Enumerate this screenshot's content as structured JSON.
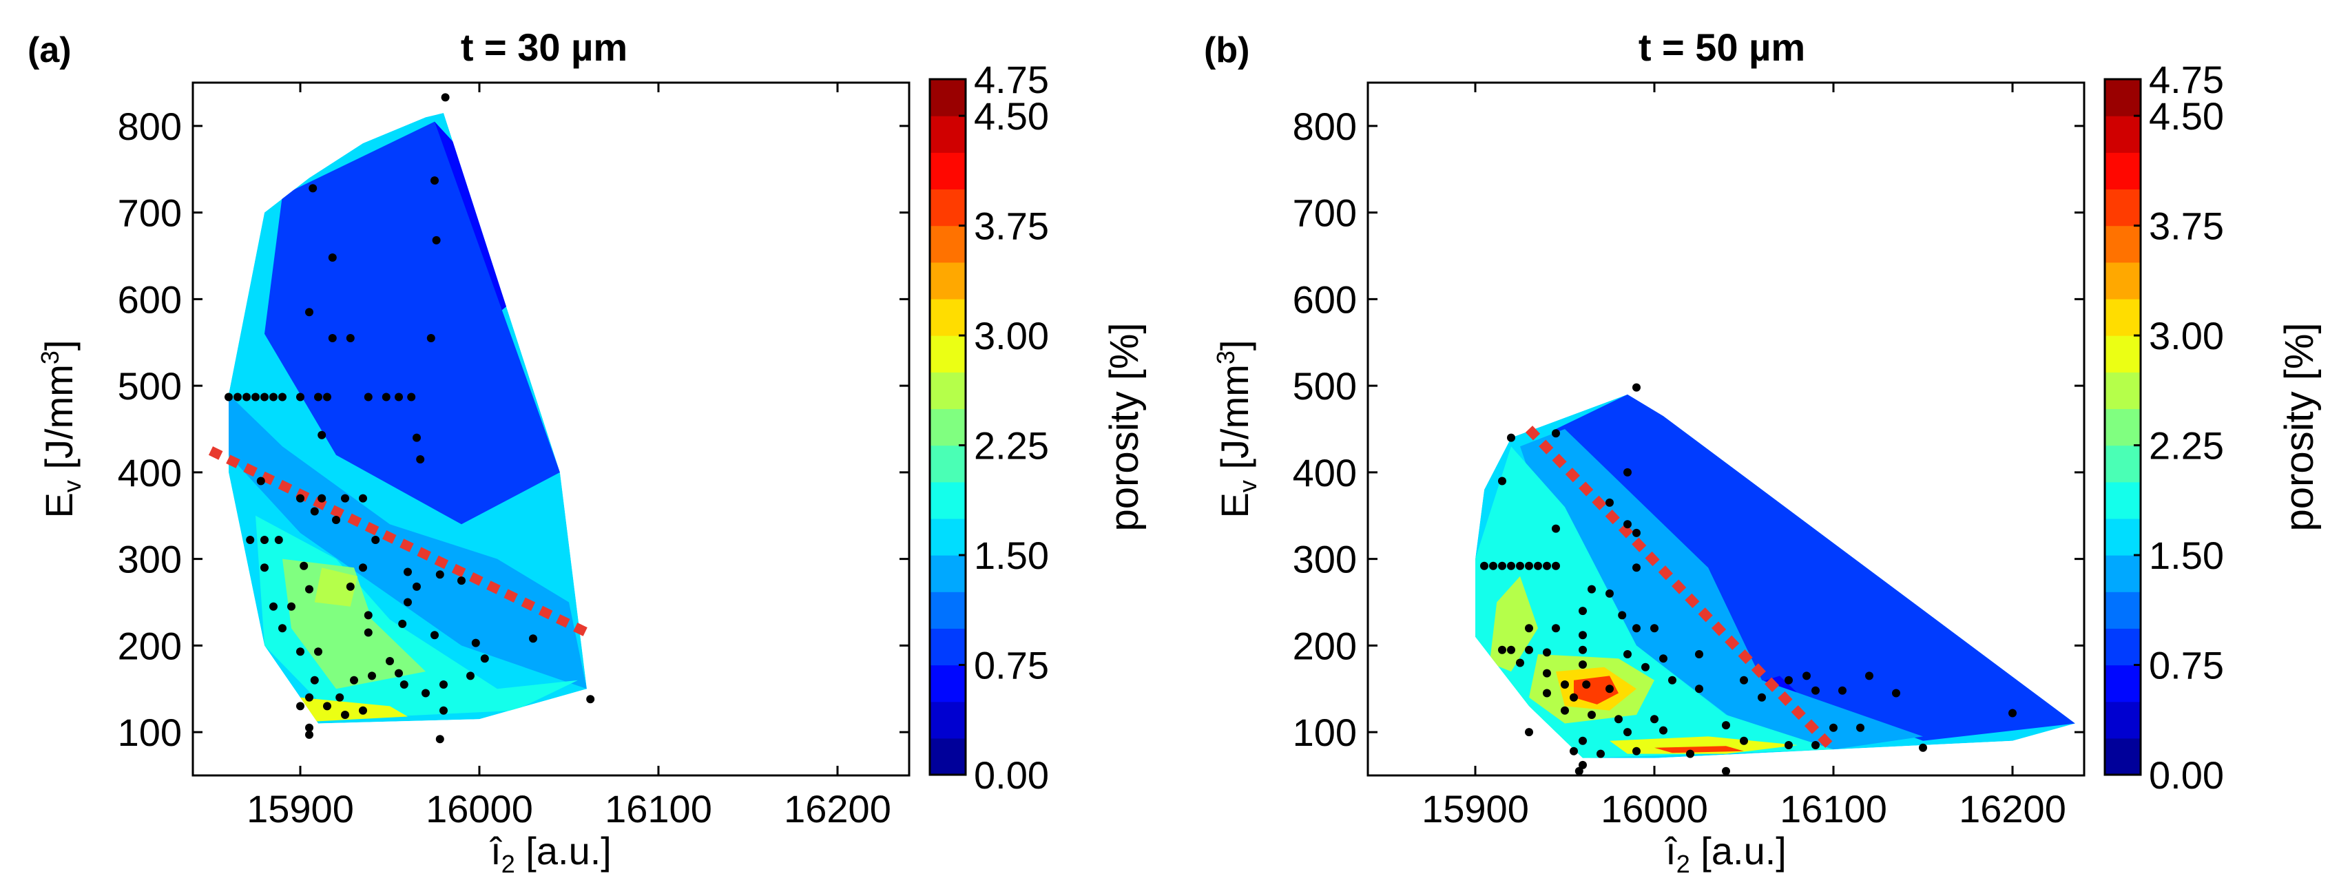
{
  "chart_data": [
    {
      "type": "heatmap",
      "panel_label": "(a)",
      "title": "t = 30 µm",
      "xlabel_main": "î",
      "xlabel_sub": "2",
      "xlabel_rest": " [a.u.]",
      "ylabel_main": "E",
      "ylabel_sub": "v",
      "ylabel_rest": " [J/mm",
      "ylabel_sup": "3",
      "ylabel_close": "]",
      "xlim": [
        15840,
        16240
      ],
      "ylim": [
        50,
        850
      ],
      "xticks": [
        15900,
        16000,
        16100,
        16200
      ],
      "yticks": [
        100,
        200,
        300,
        400,
        500,
        600,
        700,
        800
      ],
      "region": [
        [
          15860,
          490
        ],
        [
          15880,
          700
        ],
        [
          15905,
          740
        ],
        [
          15935,
          780
        ],
        [
          15970,
          810
        ],
        [
          15980,
          815
        ],
        [
          16045,
          400
        ],
        [
          16060,
          150
        ],
        [
          16000,
          115
        ],
        [
          15910,
          110
        ],
        [
          15880,
          200
        ],
        [
          15860,
          400
        ]
      ],
      "zones": [
        {
          "value": 0.5,
          "points": [
            [
              15930,
              720
            ],
            [
              15975,
              805
            ],
            [
              15995,
              760
            ],
            [
              16020,
              600
            ],
            [
              15985,
              540
            ],
            [
              15950,
              600
            ]
          ]
        },
        {
          "value": 0.8,
          "points": [
            [
              15890,
              720
            ],
            [
              15975,
              805
            ],
            [
              16045,
              400
            ],
            [
              15990,
              340
            ],
            [
              15920,
              420
            ],
            [
              15880,
              560
            ]
          ]
        },
        {
          "value": 1.3,
          "points": [
            [
              15860,
              490
            ],
            [
              15890,
              430
            ],
            [
              15950,
              340
            ],
            [
              16010,
              300
            ],
            [
              16050,
              250
            ],
            [
              16060,
              150
            ],
            [
              15990,
              200
            ],
            [
              15900,
              330
            ],
            [
              15860,
              420
            ]
          ]
        },
        {
          "value": 1.9,
          "points": [
            [
              15875,
              350
            ],
            [
              15920,
              300
            ],
            [
              15950,
              230
            ],
            [
              16010,
              150
            ],
            [
              16055,
              160
            ],
            [
              16020,
              125
            ],
            [
              15920,
              115
            ],
            [
              15880,
              200
            ]
          ]
        },
        {
          "value": 2.4,
          "points": [
            [
              15890,
              300
            ],
            [
              15930,
              290
            ],
            [
              15940,
              230
            ],
            [
              15970,
              170
            ],
            [
              15920,
              150
            ],
            [
              15895,
              220
            ]
          ]
        },
        {
          "value": 2.9,
          "points": [
            [
              15900,
              140
            ],
            [
              15950,
              130
            ],
            [
              15960,
              118
            ],
            [
              15905,
              112
            ]
          ]
        },
        {
          "value": 2.5,
          "points": [
            [
              15912,
              290
            ],
            [
              15932,
              280
            ],
            [
              15928,
              245
            ],
            [
              15908,
              250
            ]
          ]
        }
      ],
      "points": [
        [
          15981,
          833
        ],
        [
          15907,
          728
        ],
        [
          15975,
          737
        ],
        [
          15918,
          648
        ],
        [
          15976,
          668
        ],
        [
          15905,
          585
        ],
        [
          15973,
          555
        ],
        [
          15918,
          555
        ],
        [
          15928,
          555
        ],
        [
          15860,
          487
        ],
        [
          15865,
          487
        ],
        [
          15870,
          487
        ],
        [
          15875,
          487
        ],
        [
          15880,
          487
        ],
        [
          15885,
          487
        ],
        [
          15890,
          487
        ],
        [
          15900,
          487
        ],
        [
          15910,
          487
        ],
        [
          15915,
          487
        ],
        [
          15938,
          487
        ],
        [
          15948,
          487
        ],
        [
          15955,
          487
        ],
        [
          15962,
          487
        ],
        [
          15912,
          443
        ],
        [
          15965,
          440
        ],
        [
          15967,
          415
        ],
        [
          15900,
          370
        ],
        [
          15912,
          370
        ],
        [
          15925,
          370
        ],
        [
          15935,
          370
        ],
        [
          15908,
          355
        ],
        [
          15920,
          345
        ],
        [
          15878,
          390
        ],
        [
          15942,
          322
        ],
        [
          15872,
          322
        ],
        [
          15880,
          322
        ],
        [
          15888,
          322
        ],
        [
          15880,
          290
        ],
        [
          15902,
          292
        ],
        [
          15935,
          290
        ],
        [
          15960,
          285
        ],
        [
          15978,
          282
        ],
        [
          15990,
          275
        ],
        [
          15965,
          268
        ],
        [
          15928,
          268
        ],
        [
          15905,
          265
        ],
        [
          15960,
          250
        ],
        [
          15885,
          245
        ],
        [
          15895,
          245
        ],
        [
          15938,
          235
        ],
        [
          15957,
          225
        ],
        [
          15890,
          220
        ],
        [
          15938,
          215
        ],
        [
          15975,
          212
        ],
        [
          15998,
          203
        ],
        [
          16030,
          208
        ],
        [
          15900,
          193
        ],
        [
          15910,
          193
        ],
        [
          15950,
          182
        ],
        [
          16003,
          185
        ],
        [
          15995,
          165
        ],
        [
          15955,
          168
        ],
        [
          15940,
          165
        ],
        [
          15908,
          160
        ],
        [
          15930,
          160
        ],
        [
          15958,
          155
        ],
        [
          15980,
          155
        ],
        [
          15970,
          145
        ],
        [
          15905,
          140
        ],
        [
          15922,
          140
        ],
        [
          15900,
          130
        ],
        [
          15915,
          130
        ],
        [
          15935,
          125
        ],
        [
          15925,
          120
        ],
        [
          15980,
          125
        ],
        [
          15905,
          105
        ],
        [
          15905,
          97
        ],
        [
          15978,
          92
        ],
        [
          16062,
          138
        ]
      ],
      "trend": [
        [
          15850,
          425
        ],
        [
          16060,
          215
        ]
      ]
    },
    {
      "type": "heatmap",
      "panel_label": "(b)",
      "title": "t = 50 µm",
      "xlabel_main": "î",
      "xlabel_sub": "2",
      "xlabel_rest": " [a.u.]",
      "ylabel_main": "E",
      "ylabel_sub": "v",
      "ylabel_rest": " [J/mm",
      "ylabel_sup": "3",
      "ylabel_close": "]",
      "xlim": [
        15840,
        16240
      ],
      "ylim": [
        50,
        850
      ],
      "xticks": [
        15900,
        16000,
        16100,
        16200
      ],
      "yticks": [
        100,
        200,
        300,
        400,
        500,
        600,
        700,
        800
      ],
      "region": [
        [
          15900,
          300
        ],
        [
          15905,
          380
        ],
        [
          15920,
          440
        ],
        [
          15985,
          490
        ],
        [
          16005,
          465
        ],
        [
          16235,
          110
        ],
        [
          16200,
          90
        ],
        [
          16150,
          85
        ],
        [
          16100,
          80
        ],
        [
          16000,
          70
        ],
        [
          15960,
          70
        ],
        [
          15930,
          130
        ],
        [
          15900,
          210
        ]
      ],
      "zones": [
        {
          "value": 0.8,
          "points": [
            [
              15945,
              450
            ],
            [
              15985,
              490
            ],
            [
              16005,
              465
            ],
            [
              16235,
              110
            ],
            [
              16150,
              90
            ],
            [
              16060,
              160
            ],
            [
              16030,
              290
            ]
          ]
        },
        {
          "value": 0.6,
          "points": [
            [
              16055,
              155
            ],
            [
              16070,
              165
            ],
            [
              16085,
              135
            ],
            [
              16065,
              128
            ]
          ]
        },
        {
          "value": 1.3,
          "points": [
            [
              15925,
              430
            ],
            [
              15950,
              450
            ],
            [
              16030,
              290
            ],
            [
              16060,
              160
            ],
            [
              16150,
              95
            ],
            [
              16100,
              80
            ],
            [
              16050,
              105
            ],
            [
              15990,
              200
            ],
            [
              15950,
              280
            ]
          ]
        },
        {
          "value": 1.9,
          "points": [
            [
              15900,
              300
            ],
            [
              15920,
              430
            ],
            [
              15950,
              360
            ],
            [
              15990,
              200
            ],
            [
              16040,
              120
            ],
            [
              16100,
              80
            ],
            [
              15960,
              70
            ],
            [
              15930,
              130
            ],
            [
              15900,
              210
            ]
          ]
        },
        {
          "value": 2.6,
          "points": [
            [
              15912,
              250
            ],
            [
              15925,
              280
            ],
            [
              15935,
              220
            ],
            [
              15920,
              170
            ],
            [
              15908,
              180
            ]
          ]
        },
        {
          "value": 2.7,
          "points": [
            [
              15935,
              190
            ],
            [
              15980,
              185
            ],
            [
              16000,
              160
            ],
            [
              15990,
              120
            ],
            [
              15950,
              110
            ],
            [
              15930,
              140
            ]
          ]
        },
        {
          "value": 3.2,
          "points": [
            [
              15945,
              170
            ],
            [
              15972,
              175
            ],
            [
              15990,
              150
            ],
            [
              15975,
              125
            ],
            [
              15950,
              130
            ]
          ]
        },
        {
          "value": 3.9,
          "points": [
            [
              15955,
              160
            ],
            [
              15975,
              165
            ],
            [
              15980,
              145
            ],
            [
              15968,
              132
            ],
            [
              15955,
              140
            ]
          ]
        },
        {
          "value": 2.9,
          "points": [
            [
              15975,
              90
            ],
            [
              16030,
              95
            ],
            [
              16080,
              85
            ],
            [
              16040,
              75
            ],
            [
              15985,
              75
            ]
          ]
        },
        {
          "value": 3.8,
          "points": [
            [
              16000,
              82
            ],
            [
              16040,
              84
            ],
            [
              16050,
              78
            ],
            [
              16010,
              76
            ]
          ]
        }
      ],
      "points": [
        [
          15990,
          498
        ],
        [
          15920,
          440
        ],
        [
          15945,
          445
        ],
        [
          15985,
          400
        ],
        [
          15915,
          390
        ],
        [
          15975,
          365
        ],
        [
          15945,
          335
        ],
        [
          15990,
          330
        ],
        [
          15985,
          340
        ],
        [
          15905,
          292
        ],
        [
          15910,
          292
        ],
        [
          15915,
          292
        ],
        [
          15920,
          292
        ],
        [
          15925,
          292
        ],
        [
          15930,
          292
        ],
        [
          15935,
          292
        ],
        [
          15940,
          292
        ],
        [
          15945,
          292
        ],
        [
          15990,
          290
        ],
        [
          15965,
          265
        ],
        [
          15975,
          260
        ],
        [
          15960,
          240
        ],
        [
          15982,
          235
        ],
        [
          15930,
          220
        ],
        [
          15945,
          220
        ],
        [
          15990,
          220
        ],
        [
          16000,
          220
        ],
        [
          15960,
          212
        ],
        [
          15930,
          195
        ],
        [
          15920,
          195
        ],
        [
          15915,
          195
        ],
        [
          15960,
          195
        ],
        [
          15940,
          192
        ],
        [
          15985,
          190
        ],
        [
          16005,
          185
        ],
        [
          15925,
          180
        ],
        [
          15960,
          178
        ],
        [
          15995,
          175
        ],
        [
          16025,
          190
        ],
        [
          15940,
          168
        ],
        [
          15950,
          155
        ],
        [
          15962,
          155
        ],
        [
          16010,
          160
        ],
        [
          16050,
          160
        ],
        [
          16075,
          160
        ],
        [
          16085,
          165
        ],
        [
          15975,
          150
        ],
        [
          15940,
          145
        ],
        [
          15955,
          140
        ],
        [
          16025,
          150
        ],
        [
          16060,
          140
        ],
        [
          16090,
          148
        ],
        [
          16105,
          148
        ],
        [
          16120,
          165
        ],
        [
          16135,
          145
        ],
        [
          15950,
          125
        ],
        [
          15965,
          120
        ],
        [
          15980,
          115
        ],
        [
          16000,
          115
        ],
        [
          16040,
          108
        ],
        [
          16100,
          105
        ],
        [
          16115,
          105
        ],
        [
          15930,
          100
        ],
        [
          15985,
          100
        ],
        [
          16005,
          102
        ],
        [
          15960,
          90
        ],
        [
          16050,
          90
        ],
        [
          16075,
          85
        ],
        [
          16090,
          85
        ],
        [
          16150,
          82
        ],
        [
          15955,
          78
        ],
        [
          15970,
          75
        ],
        [
          15990,
          78
        ],
        [
          16020,
          75
        ],
        [
          15960,
          62
        ],
        [
          15958,
          55
        ],
        [
          16040,
          55
        ],
        [
          16200,
          122
        ]
      ],
      "trend": [
        [
          15930,
          450
        ],
        [
          16100,
          80
        ]
      ]
    }
  ],
  "colorbar": {
    "label": "porosity [%]",
    "min": 0.0,
    "max": 4.75,
    "levels": 19,
    "ticks": [
      "0.00",
      "0.75",
      "1.50",
      "2.25",
      "3.00",
      "3.75",
      "4.50",
      "4.75"
    ],
    "tick_values": [
      0.0,
      0.75,
      1.5,
      2.25,
      3.0,
      3.75,
      4.5,
      4.75
    ]
  },
  "colors": {
    "point": "#000000",
    "trend_line": "#e8392e"
  }
}
